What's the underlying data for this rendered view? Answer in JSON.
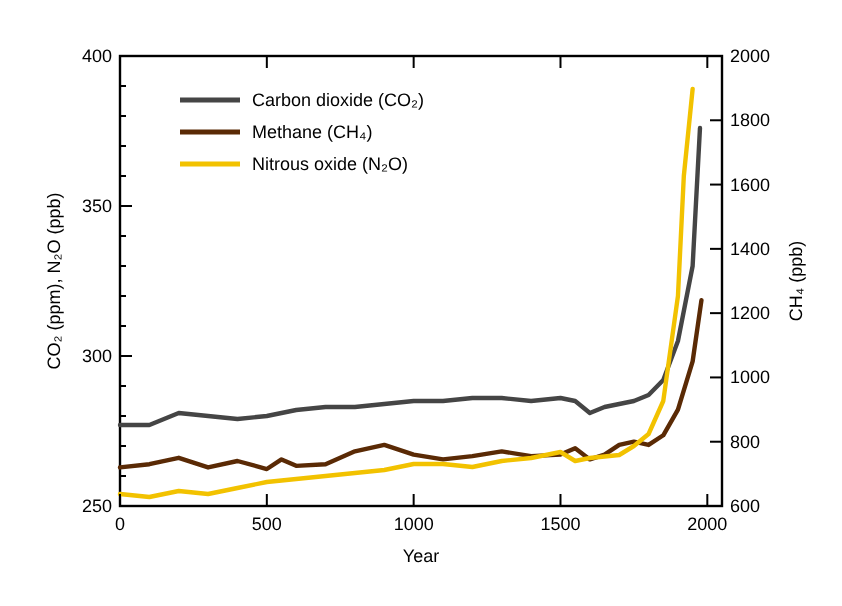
{
  "chart_data": {
    "type": "line",
    "xlabel": "Year",
    "ylabel": "CO₂ (ppm), N₂O (ppb)",
    "y2label": "CH₄ (ppb)",
    "xlim": [
      0,
      2050
    ],
    "xticks": [
      0,
      500,
      1000,
      1500,
      2000
    ],
    "ylim": [
      250,
      400
    ],
    "yticks": [
      250,
      300,
      350,
      400
    ],
    "y2lim": [
      600,
      2000
    ],
    "y2ticks": [
      600,
      800,
      1000,
      1200,
      1400,
      1600,
      1800,
      2000
    ],
    "legend": "top left",
    "grid": false,
    "series": [
      {
        "name": "Carbon dioxide (CO₂)",
        "color": "#454545",
        "x": [
          0,
          100,
          200,
          300,
          400,
          500,
          600,
          700,
          800,
          900,
          1000,
          1100,
          1200,
          1300,
          1400,
          1500,
          1550,
          1600,
          1650,
          1700,
          1750,
          1800,
          1850,
          1900,
          1950,
          1975
        ],
        "values": [
          277,
          277,
          281,
          280,
          279,
          280,
          282,
          283,
          283,
          284,
          285,
          285,
          286,
          286,
          285,
          286,
          285,
          281,
          283,
          284,
          285,
          287,
          292,
          305,
          330,
          376
        ]
      },
      {
        "name": "Methane (CH₄)",
        "color": "#5a2a05",
        "axis": "y2",
        "x": [
          0,
          100,
          200,
          300,
          400,
          500,
          550,
          600,
          700,
          800,
          900,
          1000,
          1100,
          1200,
          1300,
          1400,
          1500,
          1550,
          1600,
          1650,
          1700,
          1750,
          1800,
          1850,
          1900,
          1950,
          1980
        ],
        "values": [
          720,
          730,
          750,
          720,
          740,
          715,
          745,
          725,
          730,
          770,
          790,
          760,
          745,
          755,
          770,
          755,
          760,
          780,
          745,
          760,
          790,
          800,
          790,
          820,
          900,
          1050,
          1240
        ]
      },
      {
        "name": "Nitrous oxide (N₂O)",
        "color": "#f2c200",
        "x": [
          0,
          100,
          200,
          300,
          400,
          500,
          600,
          700,
          800,
          900,
          1000,
          1100,
          1200,
          1300,
          1400,
          1500,
          1550,
          1600,
          1700,
          1750,
          1800,
          1850,
          1900,
          1920,
          1950
        ],
        "values": [
          254,
          253,
          255,
          254,
          256,
          258,
          259,
          260,
          261,
          262,
          264,
          264,
          263,
          265,
          266,
          268,
          265,
          266,
          267,
          270,
          274,
          285,
          320,
          360,
          389
        ]
      }
    ]
  }
}
